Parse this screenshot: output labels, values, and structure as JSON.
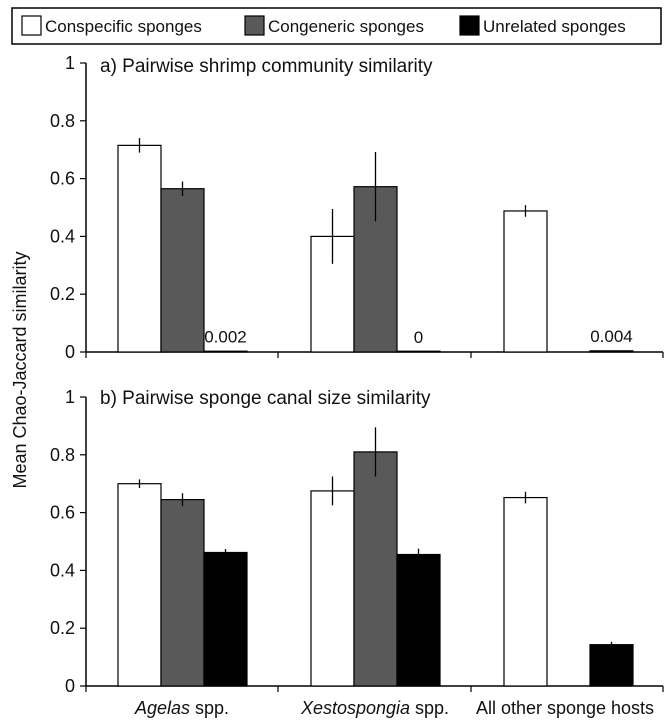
{
  "chart_data": {
    "type": "bar",
    "ylabel": "Mean Chao-Jaccard similarity",
    "ylim": [
      0,
      1
    ],
    "yticks": [
      "0",
      "0.2",
      "0.4",
      "0.6",
      "0.8",
      "1"
    ],
    "categories": [
      {
        "italic": "Agelas",
        "rest": " spp."
      },
      {
        "italic": "Xestospongia",
        "rest": " spp."
      },
      {
        "italic": "",
        "rest": "All other sponge hosts"
      }
    ],
    "legend": {
      "position": "top",
      "items": [
        {
          "name": "Conspecific sponges",
          "color": "#ffffff"
        },
        {
          "name": "Congeneric sponges",
          "color": "#595959"
        },
        {
          "name": "Unrelated sponges",
          "color": "#000000"
        }
      ]
    },
    "panels": [
      {
        "title": "a) Pairwise shrimp community similarity",
        "series": [
          {
            "name": "Conspecific sponges",
            "values": [
              0.715,
              0.4,
              0.488
            ],
            "errors": [
              0.025,
              0.095,
              0.02
            ]
          },
          {
            "name": "Congeneric sponges",
            "values": [
              0.565,
              0.572,
              null
            ],
            "errors": [
              0.025,
              0.12,
              null
            ]
          },
          {
            "name": "Unrelated sponges",
            "values": [
              0.002,
              0,
              0.004
            ],
            "errors": [
              0,
              0,
              0
            ]
          }
        ],
        "data_labels": [
          {
            "category": 0,
            "series": 2,
            "text": "0.002"
          },
          {
            "category": 1,
            "series": 2,
            "text": "0"
          },
          {
            "category": 2,
            "series": 2,
            "text": "0.004"
          }
        ]
      },
      {
        "title": "b) Pairwise sponge canal size similarity",
        "series": [
          {
            "name": "Conspecific sponges",
            "values": [
              0.7,
              0.675,
              0.652
            ],
            "errors": [
              0.015,
              0.05,
              0.02
            ]
          },
          {
            "name": "Congeneric sponges",
            "values": [
              0.645,
              0.81,
              null
            ],
            "errors": [
              0.022,
              0.085,
              null
            ]
          },
          {
            "name": "Unrelated sponges",
            "values": [
              0.462,
              0.455,
              0.143
            ],
            "errors": [
              0.012,
              0.02,
              0.01
            ]
          }
        ],
        "data_labels": []
      }
    ]
  }
}
